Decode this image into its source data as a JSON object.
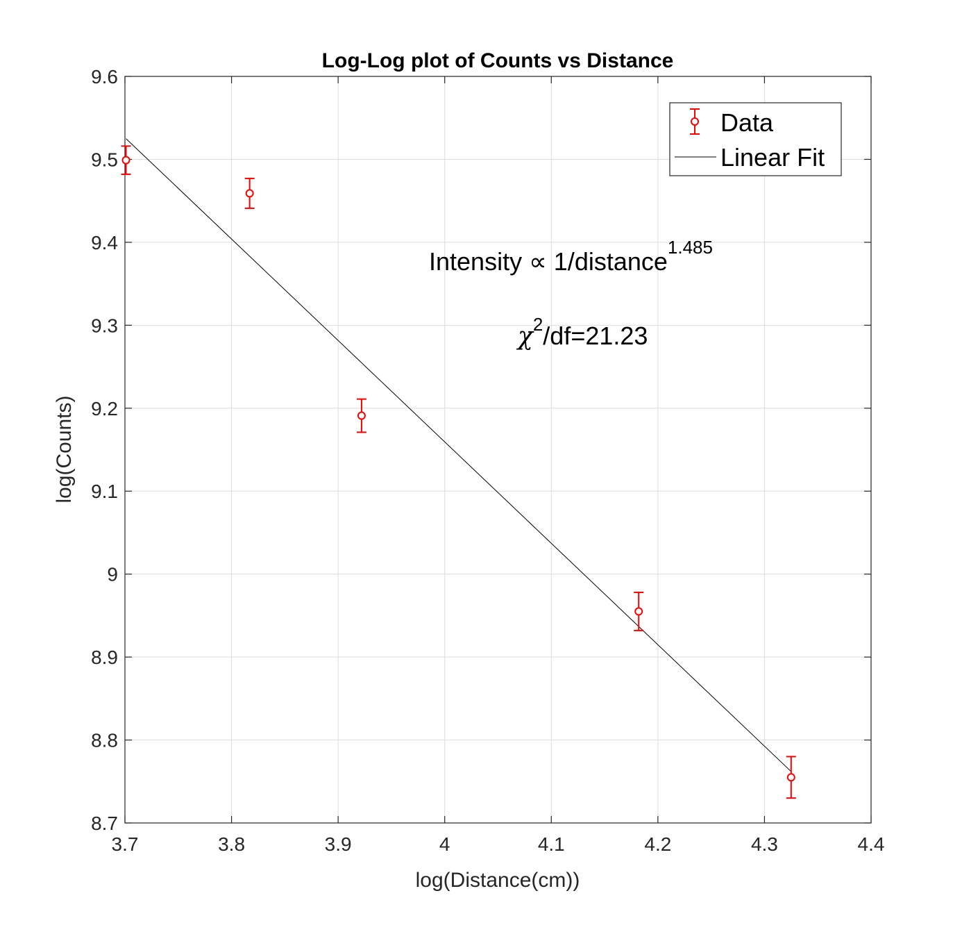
{
  "chart_data": {
    "type": "scatter",
    "title": "Log-Log plot of Counts vs Distance",
    "xlabel": "log(Distance(cm))",
    "ylabel": "log(Counts)",
    "xlim": [
      3.7,
      4.4
    ],
    "ylim": [
      8.7,
      9.6
    ],
    "xticks": [
      "3.7",
      "3.8",
      "3.9",
      "4",
      "4.1",
      "4.2",
      "4.3",
      "4.4"
    ],
    "yticks": [
      "8.7",
      "8.8",
      "8.9",
      "9",
      "9.1",
      "9.2",
      "9.3",
      "9.4",
      "9.5",
      "9.6"
    ],
    "grid": true,
    "legend_position": "top-right",
    "legend": [
      "Data",
      "Linear Fit"
    ],
    "series": [
      {
        "name": "Data",
        "kind": "errorbar",
        "color": "#ff0000",
        "marker": "circle",
        "points": [
          {
            "x": 3.701,
            "y": 9.499,
            "ylow": 9.482,
            "yhigh": 9.516
          },
          {
            "x": 3.817,
            "y": 9.459,
            "ylow": 9.441,
            "yhigh": 9.477
          },
          {
            "x": 3.922,
            "y": 9.191,
            "ylow": 9.171,
            "yhigh": 9.211
          },
          {
            "x": 4.182,
            "y": 8.955,
            "ylow": 8.932,
            "yhigh": 8.978
          },
          {
            "x": 4.325,
            "y": 8.755,
            "ylow": 8.73,
            "yhigh": 8.78
          }
        ]
      },
      {
        "name": "Linear Fit",
        "kind": "line",
        "color": "#000000",
        "x": [
          3.701,
          4.325
        ],
        "y": [
          9.525,
          8.762
        ]
      }
    ],
    "annotations": {
      "intensity_main": "Intensity ∝ 1/distance",
      "intensity_exp": "1.485",
      "chi_symbol": "χ",
      "chi_exp": "2",
      "chi_rest": "/df=21.23"
    }
  }
}
